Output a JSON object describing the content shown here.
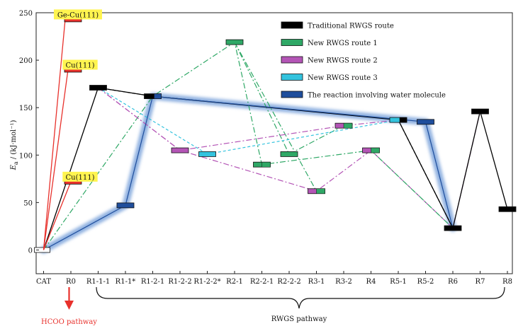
{
  "chart_data": {
    "type": "line",
    "xlabel": "",
    "ylabel_main": "E",
    "ylabel_sub": "a",
    "ylabel_unit": " / (kJ·mol⁻¹)",
    "ylim": [
      -25,
      250
    ],
    "yticks": [
      0,
      50,
      100,
      150,
      200,
      250
    ],
    "categories": [
      "CAT",
      "R0",
      "R1-1-1",
      "R1-1*",
      "R1-2-1",
      "R1-2-2",
      "R1-2-2*",
      "R2-1",
      "R2-2-1",
      "R2-2-2",
      "R3-1",
      "R3-2",
      "R4",
      "R5-1",
      "R5-2",
      "R6",
      "R7",
      "R8"
    ],
    "legend_position": "top-right",
    "colors": {
      "traditional": "#000000",
      "route1": "#2fa866",
      "route2": "#b455b6",
      "route3": "#33c3de",
      "water": "#1f4e9c",
      "halo": "#7fa6dc",
      "hcoo": "#e8312c",
      "highlight": "#fff44f"
    },
    "series": [
      {
        "name": "Traditional RWGS route",
        "color": "#000000",
        "line": "solid",
        "points": [
          [
            "CAT",
            0
          ],
          [
            "R1-1-1",
            171
          ],
          [
            "R1-2-1",
            162
          ],
          [
            "R5-1",
            137
          ],
          [
            "R6",
            23
          ],
          [
            "R7",
            146
          ],
          [
            "R8",
            43
          ]
        ]
      },
      {
        "name": "New RWGS route 1",
        "color": "#2fa866",
        "line": "dashdot",
        "points": [
          [
            "CAT",
            0
          ],
          [
            "R1-2-1",
            162
          ],
          [
            "R2-1",
            219
          ],
          [
            "R2-2-1",
            90
          ],
          [
            "R4",
            105
          ],
          [
            "R6",
            23
          ]
        ]
      },
      {
        "name": "New RWGS route 2",
        "color": "#b455b6",
        "line": "dashdot",
        "points": [
          [
            "R1-1-1",
            171
          ],
          [
            "R1-2-2",
            105
          ],
          [
            "R3-2",
            131
          ],
          [
            "R5-1",
            137
          ]
        ]
      },
      {
        "name": "New RWGS route 3",
        "color": "#33c3de",
        "line": "dash",
        "points": [
          [
            "R1-1-1",
            171
          ],
          [
            "R1-2-2*",
            101
          ],
          [
            "R5-1",
            137
          ]
        ]
      },
      {
        "name": "The reaction involving water molecule",
        "color": "#1f4e9c",
        "line": "solid",
        "points": [
          [
            "CAT",
            0
          ],
          [
            "R1-1*",
            47
          ],
          [
            "R1-2-1",
            162
          ],
          [
            "R5-2",
            135
          ],
          [
            "R6",
            23
          ]
        ]
      }
    ],
    "extra_segments": [
      {
        "color": "#000000",
        "line": "dash",
        "points": [
          [
            "R1-1-1",
            171
          ],
          [
            "R1-2-1",
            162
          ]
        ]
      },
      {
        "color": "#000000",
        "line": "dash",
        "points": [
          [
            "R5-1",
            137
          ],
          [
            "R6",
            23
          ]
        ]
      },
      {
        "color": "#2fa866",
        "line": "dashdot",
        "points": [
          [
            "R2-1",
            219
          ],
          [
            "R2-2-2",
            101
          ],
          [
            "R3-2",
            131
          ]
        ]
      },
      {
        "color": "#2fa866",
        "line": "dashdot",
        "points": [
          [
            "R2-1",
            219
          ],
          [
            "R3-1",
            62
          ]
        ]
      },
      {
        "color": "#b455b6",
        "line": "dashdot",
        "points": [
          [
            "R1-2-2",
            105
          ],
          [
            "R3-1",
            62
          ],
          [
            "R4",
            105
          ],
          [
            "R6",
            23
          ],
          [
            "R7",
            146
          ]
        ]
      },
      {
        "color": "#b455b6",
        "line": "dashdot",
        "points": [
          [
            "R1-1-1",
            171
          ],
          [
            "R1-2-2",
            105
          ]
        ]
      }
    ],
    "levels": [
      {
        "x": "CAT",
        "y": 0,
        "color": "#ffffff"
      },
      {
        "x": "R1-1-1",
        "y": 171,
        "color": "#000000"
      },
      {
        "x": "R1-1*",
        "y": 47,
        "color": "#1f4e9c"
      },
      {
        "x": "R1-2-1",
        "y": 162,
        "color": "#000000"
      },
      {
        "x": "R1-2-2",
        "y": 105,
        "color": "#b455b6"
      },
      {
        "x": "R1-2-2*",
        "y": 101,
        "color": "#33c3de"
      },
      {
        "x": "R2-1",
        "y": 219,
        "color": "#2fa866"
      },
      {
        "x": "R2-2-1",
        "y": 90,
        "color": "#2fa866"
      },
      {
        "x": "R2-2-2",
        "y": 101,
        "color": "#2fa866"
      },
      {
        "x": "R3-1",
        "y": 62,
        "color": "#b455b6"
      },
      {
        "x": "R3-2",
        "y": 131,
        "color": "#b455b6"
      },
      {
        "x": "R4",
        "y": 105,
        "color": "#b455b6"
      },
      {
        "x": "R5-1",
        "y": 137,
        "color": "#33c3de"
      },
      {
        "x": "R5-2",
        "y": 135,
        "color": "#1f4e9c"
      },
      {
        "x": "R6",
        "y": 23,
        "color": "#000000"
      },
      {
        "x": "R7",
        "y": 146,
        "color": "#000000"
      },
      {
        "x": "R8",
        "y": 43,
        "color": "#000000"
      }
    ],
    "hcoo_levels": [
      {
        "label": "Ge-Cu(111)",
        "y": 243
      },
      {
        "label": "Cu(111)",
        "y": 190
      },
      {
        "label": "Cu(111)",
        "y": 72
      }
    ],
    "annotations": {
      "hcoo_pathway": "HCOO pathway",
      "rwgs_pathway": "RWGS pathway"
    }
  }
}
